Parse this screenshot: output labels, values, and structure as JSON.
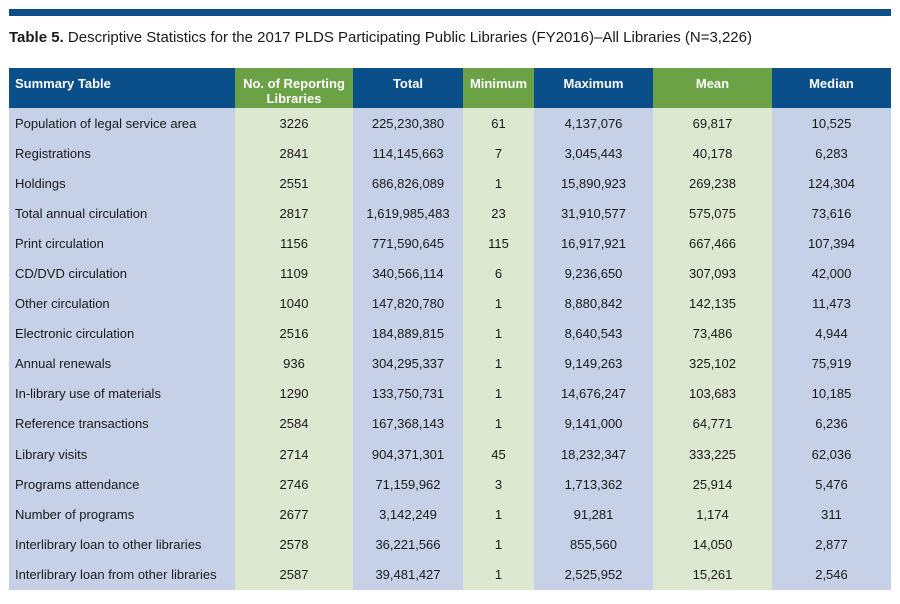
{
  "caption": {
    "label": "Table 5.",
    "text": "Descriptive Statistics for the 2017 PLDS Participating Public Libraries (FY2016)–All Libraries (N=3,226)"
  },
  "colors": {
    "header_blue": "#0b4f8a",
    "header_green": "#6ba246",
    "cell_blue": "#c6d1e7",
    "cell_green": "#dde8d0"
  },
  "table": {
    "headers": [
      "Summary Table",
      "No. of Reporting Libraries",
      "Total",
      "Minimum",
      "Maximum",
      "Mean",
      "Median"
    ],
    "rows": [
      [
        "Population of legal service area",
        "3226",
        "225,230,380",
        "61",
        "4,137,076",
        "69,817",
        "10,525"
      ],
      [
        "Registrations",
        "2841",
        "114,145,663",
        "7",
        "3,045,443",
        "40,178",
        "6,283"
      ],
      [
        "Holdings",
        "2551",
        "686,826,089",
        "1",
        "15,890,923",
        "269,238",
        "124,304"
      ],
      [
        "Total annual circulation",
        "2817",
        "1,619,985,483",
        "23",
        "31,910,577",
        "575,075",
        "73,616"
      ],
      [
        "Print circulation",
        "1156",
        "771,590,645",
        "115",
        "16,917,921",
        "667,466",
        "107,394"
      ],
      [
        "CD/DVD circulation",
        "1109",
        "340,566,114",
        "6",
        "9,236,650",
        "307,093",
        "42,000"
      ],
      [
        "Other circulation",
        "1040",
        "147,820,780",
        "1",
        "8,880,842",
        "142,135",
        "11,473"
      ],
      [
        "Electronic circulation",
        "2516",
        "184,889,815",
        "1",
        "8,640,543",
        "73,486",
        "4,944"
      ],
      [
        "Annual renewals",
        "936",
        "304,295,337",
        "1",
        "9,149,263",
        "325,102",
        "75,919"
      ],
      [
        "In-library use of materials",
        "1290",
        "133,750,731",
        "1",
        "14,676,247",
        "103,683",
        "10,185"
      ],
      [
        "Reference transactions",
        "2584",
        "167,368,143",
        "1",
        "9,141,000",
        "64,771",
        "6,236"
      ],
      [
        "Library visits",
        "2714",
        "904,371,301",
        "45",
        "18,232,347",
        "333,225",
        "62,036"
      ],
      [
        "Programs attendance",
        "2746",
        "71,159,962",
        "3",
        "1,713,362",
        "25,914",
        "5,476"
      ],
      [
        "Number of programs",
        "2677",
        "3,142,249",
        "1",
        "91,281",
        "1,174",
        "311"
      ],
      [
        "Interlibrary loan to other libraries",
        "2578",
        "36,221,566",
        "1",
        "855,560",
        "14,050",
        "2,877"
      ],
      [
        "Interlibrary loan from other libraries",
        "2587",
        "39,481,427",
        "1",
        "2,525,952",
        "15,261",
        "2,546"
      ]
    ]
  }
}
